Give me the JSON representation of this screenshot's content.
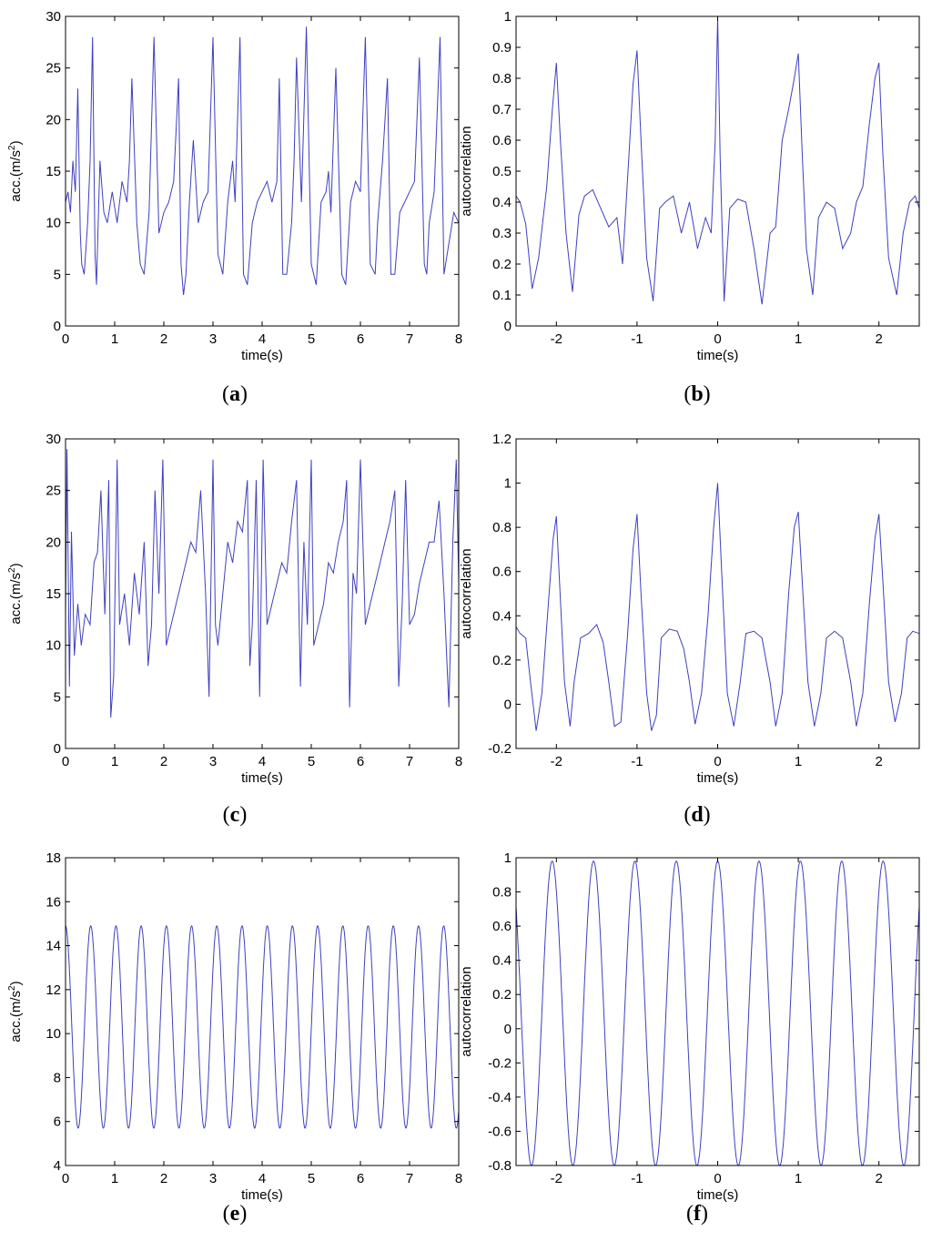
{
  "chart_data": [
    {
      "id": "a",
      "type": "line",
      "caption": "a",
      "xlabel": "time(s)",
      "ylabel": "acc.(m/s²)",
      "ylabel_base": "acc.(m/s",
      "ylabel_sup": "2",
      "ylabel_end": ")",
      "xlim": [
        0,
        8
      ],
      "ylim": [
        0,
        30
      ],
      "xticks": [
        0,
        1,
        2,
        3,
        4,
        5,
        6,
        7,
        8
      ],
      "xtick_labels": [
        "0",
        "1",
        "2",
        "3",
        "4",
        "5",
        "6",
        "7",
        "8"
      ],
      "yticks": [
        0,
        5,
        10,
        15,
        20,
        25,
        30
      ],
      "ytick_labels": [
        "0",
        "5",
        "10",
        "15",
        "20",
        "25",
        "30"
      ],
      "grid": false,
      "line_color": "#3f3fbf",
      "series": [
        {
          "x": [
            0.0,
            0.05,
            0.1,
            0.15,
            0.2,
            0.25,
            0.3,
            0.33,
            0.38,
            0.45,
            0.5,
            0.55,
            0.6,
            0.63,
            0.7,
            0.78,
            0.85,
            0.95,
            1.05,
            1.15,
            1.25,
            1.3,
            1.35,
            1.45,
            1.52,
            1.6,
            1.7,
            1.8,
            1.9,
            2.0,
            2.1,
            2.2,
            2.3,
            2.35,
            2.4,
            2.45,
            2.52,
            2.6,
            2.7,
            2.8,
            2.9,
            3.0,
            3.1,
            3.2,
            3.3,
            3.35,
            3.4,
            3.45,
            3.55,
            3.62,
            3.7,
            3.8,
            3.9,
            4.0,
            4.1,
            4.2,
            4.3,
            4.35,
            4.42,
            4.5,
            4.6,
            4.65,
            4.7,
            4.8,
            4.9,
            5.0,
            5.1,
            5.2,
            5.3,
            5.35,
            5.4,
            5.5,
            5.62,
            5.7,
            5.8,
            5.9,
            6.0,
            6.1,
            6.2,
            6.3,
            6.35,
            6.4,
            6.45,
            6.55,
            6.62,
            6.7,
            6.8,
            6.9,
            7.0,
            7.1,
            7.2,
            7.3,
            7.35,
            7.4,
            7.5,
            7.62,
            7.7,
            7.8,
            7.9,
            8.0
          ],
          "y": [
            12,
            13,
            11,
            16,
            13,
            23,
            9,
            6,
            5,
            10,
            16,
            28,
            7,
            4,
            16,
            11,
            10,
            13,
            10,
            14,
            12,
            16,
            24,
            10,
            6,
            5,
            11,
            28,
            9,
            11,
            12,
            14,
            24,
            6,
            3,
            5,
            12,
            18,
            10,
            12,
            13,
            28,
            7,
            5,
            12,
            14,
            16,
            12,
            28,
            5,
            4,
            10,
            12,
            13,
            14,
            12,
            14,
            24,
            5,
            5,
            10,
            16,
            26,
            12,
            29,
            6,
            4,
            12,
            13,
            15,
            11,
            25,
            5,
            4,
            12,
            14,
            13,
            28,
            6,
            5,
            10,
            13,
            16,
            24,
            5,
            5,
            11,
            12,
            13,
            14,
            26,
            6,
            5,
            10,
            13,
            28,
            5,
            8,
            11,
            10
          ]
        }
      ]
    },
    {
      "id": "b",
      "type": "line",
      "caption": "b",
      "xlabel": "time(s)",
      "ylabel": "autocorrelation",
      "xlim": [
        -2.5,
        2.5
      ],
      "ylim": [
        0,
        1
      ],
      "xticks": [
        -2,
        -1,
        0,
        1,
        2
      ],
      "xtick_labels": [
        "-2",
        "-1",
        "0",
        "1",
        "2"
      ],
      "yticks": [
        0,
        0.1,
        0.2,
        0.3,
        0.4,
        0.5,
        0.6,
        0.7,
        0.8,
        0.9,
        1
      ],
      "ytick_labels": [
        "0",
        "0.1",
        "0.2",
        "0.3",
        "0.4",
        "0.5",
        "0.6",
        "0.7",
        "0.8",
        "0.9",
        "1"
      ],
      "grid": false,
      "line_color": "#3f3fbf",
      "series": [
        {
          "x": [
            -2.5,
            -2.45,
            -2.38,
            -2.3,
            -2.22,
            -2.12,
            -2.05,
            -2.0,
            -1.95,
            -1.88,
            -1.8,
            -1.72,
            -1.65,
            -1.55,
            -1.45,
            -1.35,
            -1.25,
            -1.18,
            -1.1,
            -1.05,
            -1.0,
            -0.95,
            -0.88,
            -0.8,
            -0.72,
            -0.65,
            -0.55,
            -0.45,
            -0.35,
            -0.25,
            -0.15,
            -0.08,
            -0.03,
            0.0,
            0.03,
            0.08,
            0.15,
            0.25,
            0.35,
            0.45,
            0.55,
            0.65,
            0.72,
            0.8,
            0.88,
            0.95,
            1.0,
            1.05,
            1.1,
            1.18,
            1.25,
            1.35,
            1.45,
            1.55,
            1.65,
            1.72,
            1.8,
            1.88,
            1.95,
            2.0,
            2.05,
            2.12,
            2.22,
            2.3,
            2.38,
            2.45,
            2.5
          ],
          "y": [
            0.42,
            0.4,
            0.33,
            0.12,
            0.22,
            0.45,
            0.7,
            0.85,
            0.6,
            0.3,
            0.11,
            0.36,
            0.42,
            0.44,
            0.38,
            0.32,
            0.35,
            0.2,
            0.55,
            0.78,
            0.89,
            0.6,
            0.22,
            0.08,
            0.38,
            0.4,
            0.42,
            0.3,
            0.4,
            0.25,
            0.35,
            0.3,
            0.6,
            1.0,
            0.55,
            0.08,
            0.38,
            0.41,
            0.4,
            0.25,
            0.07,
            0.3,
            0.32,
            0.6,
            0.7,
            0.8,
            0.88,
            0.55,
            0.25,
            0.1,
            0.35,
            0.4,
            0.38,
            0.25,
            0.3,
            0.4,
            0.45,
            0.65,
            0.8,
            0.85,
            0.55,
            0.22,
            0.1,
            0.3,
            0.4,
            0.42,
            0.38
          ]
        }
      ]
    },
    {
      "id": "c",
      "type": "line",
      "caption": "c",
      "xlabel": "time(s)",
      "ylabel": "acc.(m/s²)",
      "ylabel_base": "acc.(m/s",
      "ylabel_sup": "2",
      "ylabel_end": ")",
      "xlim": [
        0,
        8
      ],
      "ylim": [
        0,
        30
      ],
      "xticks": [
        0,
        1,
        2,
        3,
        4,
        5,
        6,
        7,
        8
      ],
      "xtick_labels": [
        "0",
        "1",
        "2",
        "3",
        "4",
        "5",
        "6",
        "7",
        "8"
      ],
      "yticks": [
        0,
        5,
        10,
        15,
        20,
        25,
        30
      ],
      "ytick_labels": [
        "0",
        "5",
        "10",
        "15",
        "20",
        "25",
        "30"
      ],
      "grid": false,
      "line_color": "#3f3fbf",
      "series": [
        {
          "x": [
            0.0,
            0.03,
            0.08,
            0.12,
            0.18,
            0.25,
            0.32,
            0.4,
            0.5,
            0.58,
            0.65,
            0.72,
            0.8,
            0.88,
            0.92,
            0.98,
            1.05,
            1.1,
            1.2,
            1.3,
            1.4,
            1.5,
            1.6,
            1.68,
            1.75,
            1.82,
            1.9,
            1.98,
            2.05,
            2.15,
            2.25,
            2.35,
            2.45,
            2.55,
            2.65,
            2.75,
            2.85,
            2.92,
            3.0,
            3.05,
            3.1,
            3.2,
            3.3,
            3.4,
            3.5,
            3.6,
            3.7,
            3.75,
            3.8,
            3.88,
            3.95,
            4.02,
            4.1,
            4.2,
            4.3,
            4.4,
            4.5,
            4.6,
            4.7,
            4.78,
            4.85,
            4.92,
            5.0,
            5.05,
            5.15,
            5.25,
            5.35,
            5.45,
            5.55,
            5.65,
            5.72,
            5.78,
            5.85,
            5.92,
            6.0,
            6.1,
            6.2,
            6.3,
            6.4,
            6.5,
            6.6,
            6.7,
            6.78,
            6.85,
            6.92,
            7.0,
            7.1,
            7.2,
            7.3,
            7.4,
            7.5,
            7.6,
            7.7,
            7.8,
            7.88,
            7.95,
            8.0
          ],
          "y": [
            13,
            29,
            6,
            21,
            9,
            14,
            10,
            13,
            12,
            18,
            19,
            25,
            13,
            26,
            3,
            7,
            28,
            12,
            15,
            10,
            17,
            13,
            20,
            8,
            12,
            25,
            15,
            28,
            10,
            12,
            14,
            16,
            18,
            20,
            19,
            25,
            15,
            5,
            28,
            12,
            10,
            15,
            20,
            18,
            22,
            21,
            26,
            8,
            12,
            26,
            5,
            28,
            12,
            14,
            16,
            18,
            17,
            22,
            26,
            6,
            20,
            12,
            28,
            10,
            12,
            14,
            18,
            17,
            20,
            22,
            26,
            4,
            17,
            15,
            28,
            12,
            14,
            16,
            18,
            20,
            22,
            25,
            6,
            14,
            26,
            12,
            13,
            16,
            18,
            20,
            20,
            24,
            15,
            4,
            20,
            28,
            16
          ]
        }
      ]
    },
    {
      "id": "d",
      "type": "line",
      "caption": "d",
      "xlabel": "time(s)",
      "ylabel": "autocorrelation",
      "xlim": [
        -2.5,
        2.5
      ],
      "ylim": [
        -0.2,
        1.2
      ],
      "xticks": [
        -2,
        -1,
        0,
        1,
        2
      ],
      "xtick_labels": [
        "-2",
        "-1",
        "0",
        "1",
        "2"
      ],
      "yticks": [
        -0.2,
        0,
        0.2,
        0.4,
        0.6,
        0.8,
        1,
        1.2
      ],
      "ytick_labels": [
        "-0.2",
        "0",
        "0.2",
        "0.4",
        "0.6",
        "0.8",
        "1",
        "1.2"
      ],
      "grid": false,
      "line_color": "#3f3fbf",
      "series": [
        {
          "x": [
            -2.5,
            -2.45,
            -2.38,
            -2.32,
            -2.25,
            -2.18,
            -2.1,
            -2.04,
            -2.0,
            -1.96,
            -1.9,
            -1.83,
            -1.78,
            -1.7,
            -1.6,
            -1.5,
            -1.42,
            -1.35,
            -1.28,
            -1.2,
            -1.12,
            -1.05,
            -1.0,
            -0.95,
            -0.88,
            -0.82,
            -0.76,
            -0.7,
            -0.6,
            -0.5,
            -0.42,
            -0.35,
            -0.28,
            -0.2,
            -0.12,
            -0.05,
            0.0,
            0.05,
            0.12,
            0.2,
            0.28,
            0.35,
            0.45,
            0.55,
            0.65,
            0.72,
            0.8,
            0.88,
            0.95,
            1.0,
            1.05,
            1.12,
            1.2,
            1.28,
            1.35,
            1.45,
            1.55,
            1.65,
            1.72,
            1.8,
            1.88,
            1.95,
            2.0,
            2.05,
            2.12,
            2.2,
            2.28,
            2.35,
            2.42,
            2.5
          ],
          "y": [
            0.35,
            0.32,
            0.3,
            0.1,
            -0.12,
            0.05,
            0.45,
            0.75,
            0.85,
            0.55,
            0.1,
            -0.1,
            0.1,
            0.3,
            0.32,
            0.36,
            0.28,
            0.1,
            -0.1,
            -0.08,
            0.3,
            0.7,
            0.86,
            0.5,
            0.05,
            -0.12,
            -0.05,
            0.3,
            0.34,
            0.33,
            0.25,
            0.1,
            -0.09,
            0.05,
            0.4,
            0.8,
            1.0,
            0.6,
            0.05,
            -0.1,
            0.1,
            0.32,
            0.33,
            0.3,
            0.1,
            -0.1,
            0.05,
            0.5,
            0.8,
            0.87,
            0.55,
            0.1,
            -0.1,
            0.05,
            0.3,
            0.33,
            0.3,
            0.1,
            -0.1,
            0.05,
            0.45,
            0.75,
            0.86,
            0.55,
            0.1,
            -0.08,
            0.05,
            0.3,
            0.33,
            0.32
          ]
        }
      ]
    },
    {
      "id": "e",
      "type": "line",
      "caption": "e",
      "xlabel": "time(s)",
      "ylabel": "acc.(m/s²)",
      "ylabel_base": "acc.(m/s",
      "ylabel_sup": "2",
      "ylabel_end": ")",
      "xlim": [
        0,
        8
      ],
      "ylim": [
        4,
        18
      ],
      "xticks": [
        0,
        1,
        2,
        3,
        4,
        5,
        6,
        7,
        8
      ],
      "xtick_labels": [
        "0",
        "1",
        "2",
        "3",
        "4",
        "5",
        "6",
        "7",
        "8"
      ],
      "yticks": [
        4,
        6,
        8,
        10,
        12,
        14,
        16,
        18
      ],
      "ytick_labels": [
        "4",
        "6",
        "8",
        "10",
        "12",
        "14",
        "16",
        "18"
      ],
      "grid": false,
      "line_color": "#3f3fbf",
      "period": 0.513,
      "phase": 0.0,
      "mean": 10.3,
      "amplitude": 4.6
    },
    {
      "id": "f",
      "type": "line",
      "caption": "f",
      "xlabel": "time(s)",
      "ylabel": "autocorrelation",
      "xlim": [
        -2.5,
        2.5
      ],
      "ylim": [
        -0.8,
        1
      ],
      "xticks": [
        -2,
        -1,
        0,
        1,
        2
      ],
      "xtick_labels": [
        "-2",
        "-1",
        "0",
        "1",
        "2"
      ],
      "yticks": [
        -0.8,
        -0.6,
        -0.4,
        -0.2,
        0,
        0.2,
        0.4,
        0.6,
        0.8,
        1
      ],
      "ytick_labels": [
        "-0.8",
        "-0.6",
        "-0.4",
        "-0.2",
        "0",
        "0.2",
        "0.4",
        "0.6",
        "0.8",
        "1"
      ],
      "grid": false,
      "line_color": "#3f3fbf",
      "period": 0.513,
      "phase": 0.0,
      "mean": 0.09,
      "amplitude": 0.89
    }
  ]
}
